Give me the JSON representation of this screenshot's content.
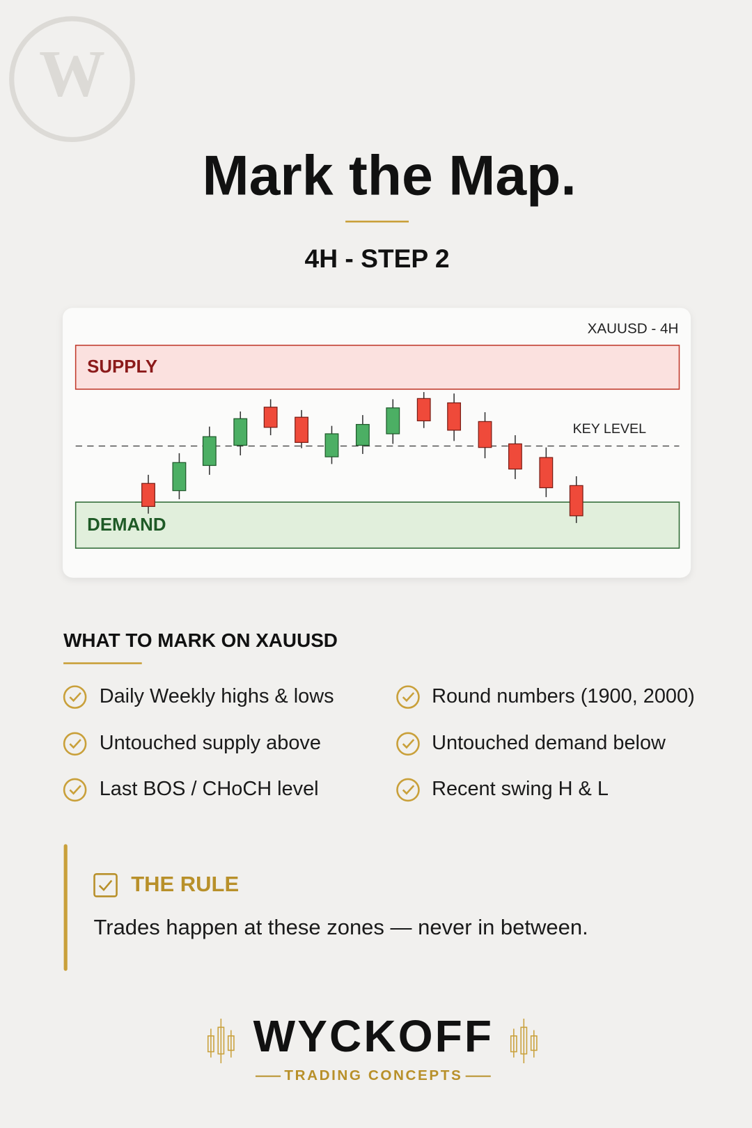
{
  "logo": "W",
  "title": "Mark the Map.",
  "subtitle": "4H - STEP 2",
  "chart": {
    "label": "XAUUSD - 4H",
    "supply": "SUPPLY",
    "key_level": "KEY LEVEL",
    "demand": "DEMAND"
  },
  "checklist": {
    "title": "WHAT TO MARK ON XAUUSD",
    "items": [
      [
        "Daily Weekly highs & lows",
        "Round numbers (1900, 2000)"
      ],
      [
        "Untouched supply above",
        "Untouched demand below"
      ],
      [
        "Last BOS / CHoCH level",
        "Recent swing H & L"
      ]
    ]
  },
  "rule": {
    "title": "THE RULE",
    "text": "Trades happen at these zones — never in between."
  },
  "brand": {
    "name": "WYCKOFF",
    "tagline": "TRADING CONCEPTS"
  }
}
